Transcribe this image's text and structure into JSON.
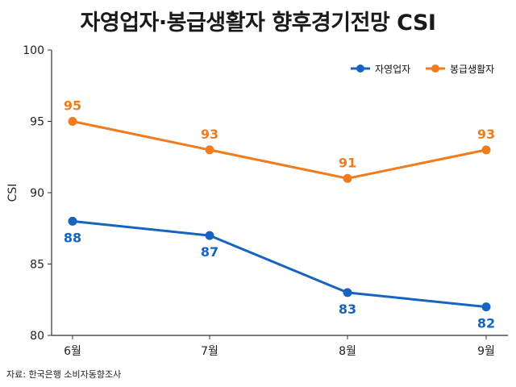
{
  "title": "자영업자·봉급생활자 향후경기전망 CSI",
  "source": "자료: 한국은행 소비자동향조사",
  "colors": {
    "self_employed": "#1565C0",
    "salaried": "#F07C1E",
    "axis": "#333333"
  },
  "chart_data": {
    "type": "line",
    "title": "자영업자·봉급생활자 향후경기전망 CSI",
    "ylabel": "CSI",
    "xlabel": "",
    "categories": [
      "6월",
      "7월",
      "8월",
      "9월"
    ],
    "ylim": [
      80,
      100
    ],
    "yticks": [
      80,
      85,
      90,
      95,
      100
    ],
    "grid": false,
    "legend": "top-right",
    "series": [
      {
        "name": "자영업자",
        "values": [
          88,
          87,
          83,
          82
        ],
        "labels": [
          "88",
          "87",
          "83",
          "82"
        ],
        "label_position": "below"
      },
      {
        "name": "봉급생활자",
        "values": [
          95,
          93,
          91,
          93
        ],
        "labels": [
          "95",
          "93",
          "91",
          "93"
        ],
        "label_position": "above"
      }
    ]
  }
}
